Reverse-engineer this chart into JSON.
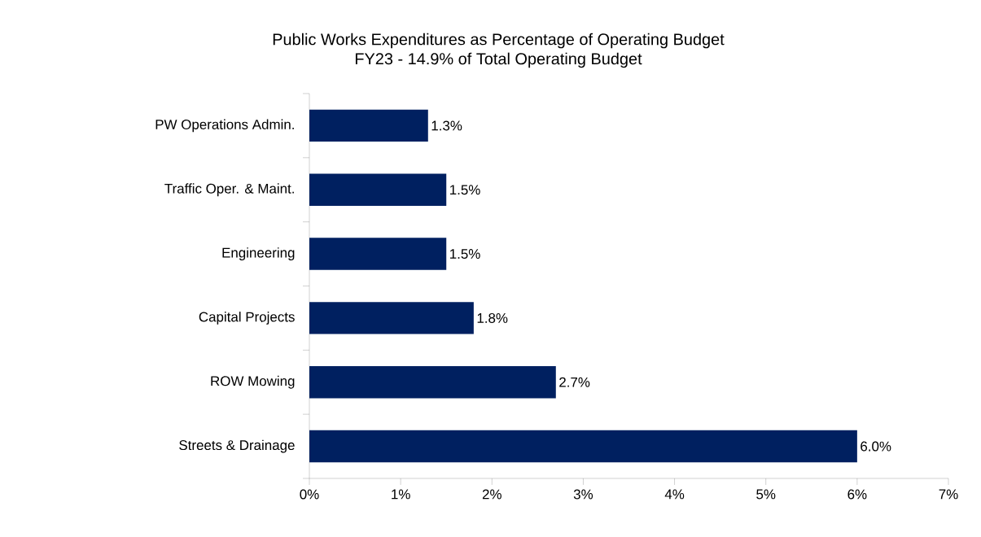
{
  "chart_data": {
    "type": "bar",
    "orientation": "horizontal",
    "title": "Public Works Expenditures as Percentage of Operating Budget",
    "subtitle": "FY23 - 14.9% of Total Operating Budget",
    "categories": [
      "PW Operations Admin.",
      "Traffic Oper. & Maint.",
      "Engineering",
      "Capital Projects",
      "ROW Mowing",
      "Streets & Drainage"
    ],
    "values": [
      1.3,
      1.5,
      1.5,
      1.8,
      2.7,
      6.0
    ],
    "value_labels": [
      "1.3%",
      "1.5%",
      "1.5%",
      "1.8%",
      "2.7%",
      "6.0%"
    ],
    "color": "#002060",
    "xlim": [
      0,
      7
    ],
    "xticks": [
      {
        "value": 0,
        "label": "0%"
      },
      {
        "value": 1,
        "label": "1%"
      },
      {
        "value": 2,
        "label": "2%"
      },
      {
        "value": 3,
        "label": "3%"
      },
      {
        "value": 4,
        "label": "4%"
      },
      {
        "value": 5,
        "label": "5%"
      },
      {
        "value": 6,
        "label": "6%"
      },
      {
        "value": 7,
        "label": "7%"
      }
    ],
    "grid": false
  }
}
